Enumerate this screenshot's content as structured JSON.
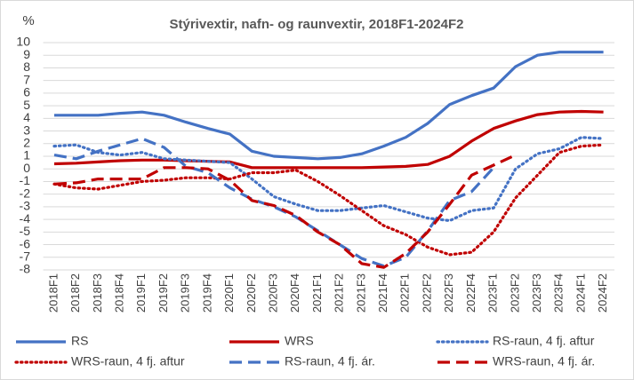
{
  "chart_data": {
    "type": "line",
    "title": "Stýrivextir, nafn- og raunvextir, 2018F1-2024F2",
    "y_label": "%",
    "categories": [
      "2018F1",
      "2018F2",
      "2018F3",
      "2018F4",
      "2019F1",
      "2019F2",
      "2019F3",
      "2019F4",
      "2020F1",
      "2020F2",
      "2020F3",
      "2020F4",
      "2021F1",
      "2021F2",
      "2021F3",
      "2021F4",
      "2022F1",
      "2022F2",
      "2022F3",
      "2022F4",
      "2023F1",
      "2023F2",
      "2023F3",
      "2023F4",
      "2024F1",
      "2024F2"
    ],
    "series": [
      {
        "name": "RS",
        "color": "#4472c4",
        "dash": "solid",
        "values": [
          4.25,
          4.25,
          4.25,
          4.4,
          4.5,
          4.25,
          3.7,
          3.2,
          2.75,
          1.4,
          1.0,
          0.9,
          0.8,
          0.9,
          1.2,
          1.8,
          2.5,
          3.6,
          5.1,
          5.8,
          6.4,
          8.1,
          9.0,
          9.25,
          9.25,
          9.25
        ]
      },
      {
        "name": "WRS",
        "color": "#c00000",
        "dash": "solid",
        "values": [
          0.4,
          0.45,
          0.55,
          0.65,
          0.7,
          0.7,
          0.65,
          0.6,
          0.55,
          0.1,
          0.1,
          0.1,
          0.1,
          0.1,
          0.1,
          0.15,
          0.2,
          0.35,
          1.0,
          2.2,
          3.2,
          3.8,
          4.3,
          4.5,
          4.55,
          4.5
        ]
      },
      {
        "name": "RS-raun, 4 fj. aftur",
        "color": "#4472c4",
        "dash": "dotted",
        "values": [
          1.8,
          1.9,
          1.3,
          1.1,
          1.3,
          0.8,
          0.7,
          0.6,
          0.5,
          -0.8,
          -2.2,
          -2.8,
          -3.3,
          -3.3,
          -3.1,
          -2.9,
          -3.4,
          -3.9,
          -4.1,
          -3.3,
          -3.1,
          0.0,
          1.2,
          1.6,
          2.5,
          2.4
        ]
      },
      {
        "name": "WRS-raun, 4 fj. aftur",
        "color": "#c00000",
        "dash": "dotted",
        "values": [
          -1.2,
          -1.5,
          -1.6,
          -1.3,
          -1.0,
          -0.9,
          -0.7,
          -0.7,
          -0.8,
          -0.3,
          -0.3,
          -0.1,
          -1.0,
          -2.1,
          -3.3,
          -4.5,
          -5.2,
          -6.2,
          -6.8,
          -6.6,
          -5.0,
          -2.3,
          -0.5,
          1.3,
          1.8,
          1.9
        ]
      },
      {
        "name": "RS-raun, 4 fj. ár.",
        "color": "#4472c4",
        "dash": "dashed",
        "values": [
          1.1,
          0.8,
          1.4,
          1.9,
          2.4,
          1.7,
          0.2,
          -0.3,
          -1.5,
          -2.4,
          -3.0,
          -3.8,
          -4.9,
          -6.0,
          -7.1,
          -7.7,
          -7.0,
          -4.9,
          -2.5,
          -1.8,
          0.1,
          null,
          null,
          null,
          null,
          null
        ]
      },
      {
        "name": "WRS-raun, 4 fj. ár.",
        "color": "#c00000",
        "dash": "dashed",
        "values": [
          -1.2,
          -1.1,
          -0.8,
          -0.8,
          -0.8,
          0.1,
          0.1,
          0.0,
          -0.9,
          -2.5,
          -2.9,
          -3.7,
          -5.0,
          -6.0,
          -7.5,
          -7.8,
          -6.7,
          -5.0,
          -2.8,
          -0.5,
          0.3,
          1.1,
          null,
          null,
          null,
          null
        ]
      }
    ],
    "ylim": [
      -8,
      10
    ],
    "yticks": [
      -8,
      -7,
      -6,
      -5,
      -4,
      -3,
      -2,
      -1,
      0,
      1,
      2,
      3,
      4,
      5,
      6,
      7,
      8,
      9,
      10
    ],
    "grid": true
  }
}
